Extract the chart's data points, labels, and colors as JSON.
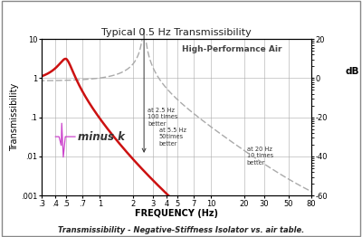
{
  "title": "Typical 0.5 Hz Transmissibility",
  "xlabel": "FREQUENCY (Hz)",
  "ylabel": "Transmissibility",
  "ylabel_right": "dB",
  "caption": "Transmissibility - Negative-Stiffness Isolator vs. air table.",
  "bg_color": "#ffffff",
  "plot_bg": "#ffffff",
  "ylim_log": [
    0.001,
    10
  ],
  "xlim_log": [
    0.3,
    80
  ],
  "minus_k_color": "#cc1111",
  "air_color": "#bbbbbb",
  "xticks_pos": [
    0.3,
    0.4,
    0.5,
    0.7,
    1,
    2,
    3,
    4,
    5,
    7,
    10,
    20,
    30,
    50,
    80
  ],
  "xticks_lab": [
    ".3",
    ".4",
    ".5",
    ".7",
    "1",
    "2",
    "3",
    "4",
    "5",
    "7",
    "10",
    "20",
    "30",
    "50",
    "80"
  ],
  "yticks_pos": [
    0.001,
    0.01,
    0.1,
    1,
    10
  ],
  "yticks_lab": [
    ".001",
    ".01",
    ".1",
    "1",
    "10"
  ],
  "db_ticks": [
    20,
    0,
    -20,
    -40,
    -60
  ]
}
